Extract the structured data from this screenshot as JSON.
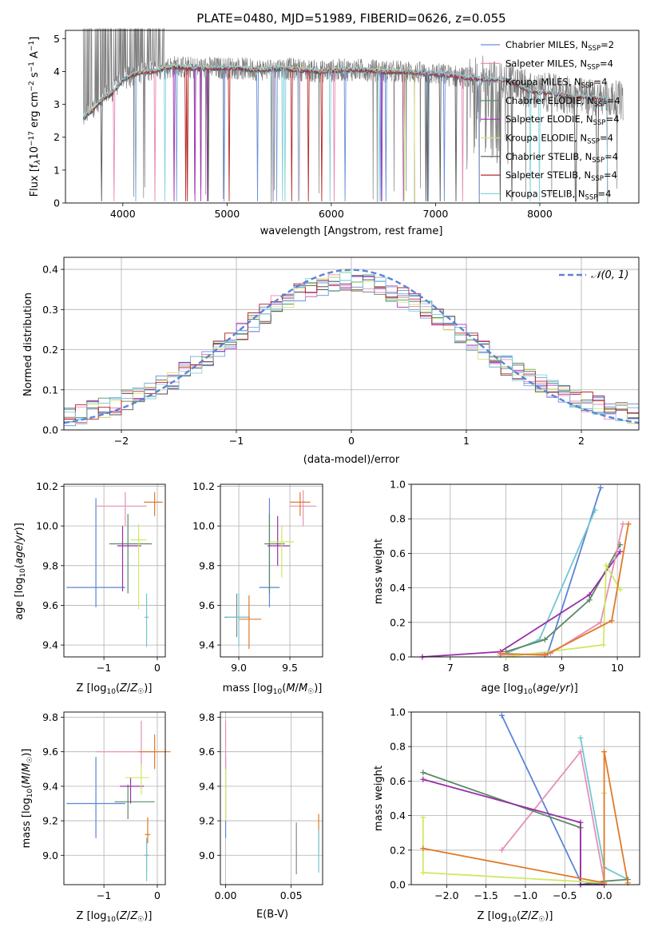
{
  "figure": {
    "title": "PLATE=0480, MJD=51989, FIBERID=0626, z=0.055"
  },
  "colors": {
    "data": "#808080",
    "grid": "#b0b0b0",
    "models": [
      "#6a8fd8",
      "#ea87b5",
      "#7ba7d4",
      "#55906a",
      "#a22fb5",
      "#d4e870",
      "#555555",
      "#b8282a",
      "#86d2dc"
    ],
    "summary": {
      "Chabrier MILES": "#5b84d6",
      "Salpeter MILES": "#e68fb8",
      "Salpeter STELIB": "#e07a28",
      "Chabrier ELODIE": "#5a8a63",
      "Salpeter ELODIE": "#9a2fa8",
      "Kroupa ELODIE": "#cdea63",
      "Kroupa MILES": "#6fa8dc",
      "Kroupa STELIB": "#72c7d1"
    }
  },
  "panel_spectrum": {
    "xlabel": "wavelength [Angstrom, rest frame]",
    "ylabel": "Flux [f_λ10^-17 erg cm^-2 s^-1 A^-1]",
    "xticks": [
      "4000",
      "5000",
      "6000",
      "7000",
      "8000"
    ],
    "yticks": [
      "0",
      "1",
      "2",
      "3",
      "4",
      "5"
    ],
    "legend": [
      {
        "label": "Chabrier MILES, N",
        "sub": "SSP",
        "suffix": "=2"
      },
      {
        "label": "Salpeter MILES, N",
        "sub": "SSP",
        "suffix": "=4"
      },
      {
        "label": "Kroupa MILES, N",
        "sub": "SSP",
        "suffix": "=4"
      },
      {
        "label": "Chabrier ELODIE, N",
        "sub": "SSP",
        "suffix": "=4"
      },
      {
        "label": "Salpeter ELODIE, N",
        "sub": "SSP",
        "suffix": "=4"
      },
      {
        "label": "Kroupa ELODIE, N",
        "sub": "SSP",
        "suffix": "=4"
      },
      {
        "label": "Chabrier STELIB, N",
        "sub": "SSP",
        "suffix": "=4"
      },
      {
        "label": "Salpeter STELIB, N",
        "sub": "SSP",
        "suffix": "=4"
      },
      {
        "label": "Kroupa STELIB, N",
        "sub": "SSP",
        "suffix": "=4"
      }
    ]
  },
  "panel_residuals": {
    "xlabel": "(data-model)/error",
    "ylabel": "Normed distribution",
    "xticks": [
      "−2",
      "−1",
      "0",
      "1",
      "2"
    ],
    "yticks": [
      "0.0",
      "0.1",
      "0.2",
      "0.3",
      "0.4"
    ],
    "legend": "𝒩(0, 1)"
  },
  "panel_age_Z": {
    "xlabel": "Z [log10(Z/Z☉)]",
    "ylabel": "age  [log10(age/yr)]"
  },
  "panel_age_mass": {
    "xlabel": "mass [log10(M/M☉)]"
  },
  "panel_weight_age": {
    "xlabel": "age  [log10(age/yr)]",
    "ylabel": "mass weight"
  },
  "panel_mass_Z": {
    "xlabel": "Z [log10(Z/Z☉)]",
    "ylabel": "mass [log10(M/M☉)]"
  },
  "panel_mass_ebv": {
    "xlabel": "E(B-V)"
  },
  "panel_weight_Z": {
    "xlabel": "Z [log10(Z/Z☉)]",
    "ylabel": "mass weight"
  },
  "chart_data": [
    {
      "type": "line",
      "title": "PLATE=0480, MJD=51989, FIBERID=0626, z=0.055",
      "xlabel": "wavelength [Angstrom, rest frame]",
      "ylabel": "Flux [f_λ 10^-17 erg cm^-2 s^-1 A^-1]",
      "xlim": [
        3450,
        8950
      ],
      "ylim": [
        0,
        5.25
      ],
      "grid": false,
      "legend_position": "top-right",
      "continuum": {
        "x": [
          3620,
          3700,
          3800,
          3900,
          4000,
          4100,
          4200,
          4300,
          4400,
          4500,
          4700,
          4900,
          5100,
          5300,
          5500,
          5700,
          5900,
          6100,
          6300,
          6500,
          6700,
          6900,
          7100,
          7300,
          7500,
          7700,
          7900,
          8100,
          8300,
          8500,
          8700,
          8800
        ],
        "y": [
          2.6,
          2.8,
          3.15,
          3.35,
          3.75,
          3.9,
          4.0,
          4.0,
          4.1,
          4.15,
          4.1,
          4.1,
          4.1,
          4.05,
          4.1,
          4.05,
          4.0,
          4.05,
          4.05,
          4.0,
          4.0,
          3.95,
          3.9,
          3.8,
          3.75,
          3.75,
          3.4,
          3.35,
          3.25,
          3.2,
          3.15,
          3.1
        ]
      },
      "series": [
        {
          "name": "Chabrier MILES, N_SSP=2",
          "xmax": 7420
        },
        {
          "name": "Salpeter MILES, N_SSP=4",
          "xmax": 7420
        },
        {
          "name": "Kroupa MILES, N_SSP=4",
          "xmax": 7420
        },
        {
          "name": "Chabrier ELODIE, N_SSP=4",
          "xmax": 6800
        },
        {
          "name": "Salpeter ELODIE, N_SSP=4",
          "xmax": 6800
        },
        {
          "name": "Kroupa ELODIE, N_SSP=4",
          "xmax": 6800
        },
        {
          "name": "Chabrier STELIB, N_SSP=4",
          "xmax": 8650
        },
        {
          "name": "Salpeter STELIB, N_SSP=4",
          "xmax": 8650
        },
        {
          "name": "Kroupa STELIB, N_SSP=4",
          "xmax": 8650
        }
      ]
    },
    {
      "type": "bar",
      "xlabel": "(data-model)/error",
      "ylabel": "Normed distribution",
      "xlim": [
        -2.5,
        2.5
      ],
      "ylim": [
        0,
        0.43
      ],
      "grid": true,
      "bin_width": 0.1,
      "reference_curve": "N(0,1)",
      "bins_center": [
        -2.45,
        -2.35,
        -2.25,
        -2.15,
        -2.05,
        -1.95,
        -1.85,
        -1.75,
        -1.65,
        -1.55,
        -1.45,
        -1.35,
        -1.25,
        -1.15,
        -1.05,
        -0.95,
        -0.85,
        -0.75,
        -0.65,
        -0.55,
        -0.45,
        -0.35,
        -0.25,
        -0.15,
        -0.05,
        0.05,
        0.15,
        0.25,
        0.35,
        0.45,
        0.55,
        0.65,
        0.75,
        0.85,
        0.95,
        1.05,
        1.15,
        1.25,
        1.35,
        1.45,
        1.55,
        1.65,
        1.75,
        1.85,
        1.95,
        2.05,
        2.15,
        2.25,
        2.35,
        2.45
      ],
      "envelope": [
        0.035,
        0.038,
        0.05,
        0.055,
        0.06,
        0.075,
        0.085,
        0.095,
        0.11,
        0.125,
        0.15,
        0.165,
        0.18,
        0.2,
        0.225,
        0.245,
        0.27,
        0.29,
        0.31,
        0.33,
        0.345,
        0.355,
        0.36,
        0.365,
        0.37,
        0.37,
        0.365,
        0.355,
        0.34,
        0.33,
        0.315,
        0.3,
        0.28,
        0.26,
        0.24,
        0.22,
        0.2,
        0.18,
        0.16,
        0.145,
        0.13,
        0.115,
        0.1,
        0.09,
        0.08,
        0.07,
        0.06,
        0.05,
        0.045,
        0.04
      ],
      "series": [
        {
          "name": "Chabrier MILES, N_SSP=2"
        },
        {
          "name": "Salpeter MILES, N_SSP=4"
        },
        {
          "name": "Kroupa MILES, N_SSP=4"
        },
        {
          "name": "Chabrier ELODIE, N_SSP=4"
        },
        {
          "name": "Salpeter ELODIE, N_SSP=4"
        },
        {
          "name": "Kroupa ELODIE, N_SSP=4"
        },
        {
          "name": "Chabrier STELIB, N_SSP=4"
        },
        {
          "name": "Salpeter STELIB, N_SSP=4"
        },
        {
          "name": "Kroupa STELIB, N_SSP=4"
        }
      ]
    },
    {
      "type": "scatter",
      "xlabel": "Z [log10(Z/Z☉)]",
      "ylabel": "age  [log10(age/yr)]",
      "xlim": [
        -1.75,
        0.15
      ],
      "ylim": [
        9.34,
        10.21
      ],
      "xticks": [
        -1,
        0
      ],
      "yticks": [
        9.4,
        9.6,
        9.8,
        10.0,
        10.2
      ],
      "grid": true,
      "errorbars": [
        {
          "name": "Chabrier MILES",
          "x": -1.15,
          "xerr": [
            0.55,
            0.55
          ],
          "y": 9.69,
          "yerr": [
            0.1,
            0.45
          ]
        },
        {
          "name": "Salpeter MILES",
          "x": -0.6,
          "xerr": [
            0.55,
            0.4
          ],
          "y": 10.1,
          "yerr": [
            0.1,
            0.07
          ]
        },
        {
          "name": "Salpeter STELIB",
          "x": -0.05,
          "xerr": [
            0.2,
            0.15
          ],
          "y": 10.12,
          "yerr": [
            0.07,
            0.05
          ]
        },
        {
          "name": "Chabrier ELODIE",
          "x": -0.55,
          "xerr": [
            0.35,
            0.45
          ],
          "y": 9.91,
          "yerr": [
            0.25,
            0.15
          ]
        },
        {
          "name": "Salpeter ELODIE",
          "x": -0.65,
          "xerr": [
            0.1,
            0.35
          ],
          "y": 9.9,
          "yerr": [
            0.23,
            0.1
          ]
        },
        {
          "name": "Kroupa ELODIE",
          "x": -0.35,
          "xerr": [
            0.15,
            0.15
          ],
          "y": 9.93,
          "yerr": [
            0.35,
            0.08
          ]
        },
        {
          "name": "Kroupa STELIB",
          "x": -0.2,
          "xerr": [
            0.04,
            0.04
          ],
          "y": 9.54,
          "yerr": [
            0.15,
            0.12
          ]
        }
      ]
    },
    {
      "type": "scatter",
      "xlabel": "mass [log10(M/M☉)]",
      "xlim": [
        8.82,
        9.82
      ],
      "ylim": [
        9.34,
        10.21
      ],
      "xticks": [
        9.0,
        9.5
      ],
      "yticks": [
        9.4,
        9.6,
        9.8,
        10.0,
        10.2
      ],
      "grid": true,
      "errorbars": [
        {
          "name": "Chabrier MILES",
          "x": 9.3,
          "xerr": [
            0.1,
            0.1
          ],
          "y": 9.69,
          "yerr": [
            0.1,
            0.45
          ]
        },
        {
          "name": "Salpeter MILES",
          "x": 9.63,
          "xerr": [
            0.13,
            0.13
          ],
          "y": 10.1,
          "yerr": [
            0.1,
            0.08
          ]
        },
        {
          "name": "Salpeter STELIB",
          "x": 9.6,
          "xerr": [
            0.1,
            0.1
          ],
          "y": 10.12,
          "yerr": [
            0.07,
            0.05
          ]
        },
        {
          "name": "Chabrier ELODIE",
          "x": 9.3,
          "xerr": [
            0.05,
            0.15
          ],
          "y": 9.91,
          "yerr": [
            0.25,
            0.15
          ]
        },
        {
          "name": "Salpeter ELODIE",
          "x": 9.38,
          "xerr": [
            0.1,
            0.12
          ],
          "y": 9.9,
          "yerr": [
            0.1,
            0.15
          ]
        },
        {
          "name": "Kroupa ELODIE",
          "x": 9.42,
          "xerr": [
            0.12,
            0.12
          ],
          "y": 9.92,
          "yerr": [
            0.18,
            0.08
          ]
        },
        {
          "name": "Chabrier STELIB",
          "x": 8.98,
          "xerr": [
            0.12,
            0.13
          ],
          "y": 9.54,
          "yerr": [
            0.1,
            0.12
          ]
        },
        {
          "name": "Salpeter STELIB",
          "x": 9.1,
          "xerr": [
            0.1,
            0.12
          ],
          "y": 9.53,
          "yerr": [
            0.15,
            0.12
          ]
        },
        {
          "name": "Kroupa STELIB",
          "x": 9.0,
          "xerr": [
            0.12,
            0.1
          ],
          "y": 9.54,
          "yerr": [
            0.15,
            0.12
          ]
        }
      ]
    },
    {
      "type": "line",
      "xlabel": "age  [log10(age/yr)]",
      "ylabel": "mass weight",
      "xlim": [
        6.3,
        10.4
      ],
      "ylim": [
        0,
        1
      ],
      "xticks": [
        7,
        8,
        9,
        10
      ],
      "yticks": [
        0.0,
        0.2,
        0.4,
        0.6,
        0.8,
        1.0
      ],
      "grid": true,
      "series": [
        {
          "name": "Chabrier MILES",
          "x": [
            8.75,
            9.7
          ],
          "y": [
            0.02,
            0.98
          ]
        },
        {
          "name": "Kroupa STELIB",
          "x": [
            8.0,
            8.6,
            9.6
          ],
          "y": [
            0.02,
            0.1,
            0.85
          ]
        },
        {
          "name": "Chabrier ELODIE",
          "x": [
            8.0,
            8.7,
            9.5,
            10.05
          ],
          "y": [
            0.03,
            0.1,
            0.33,
            0.65
          ]
        },
        {
          "name": "Salpeter ELODIE",
          "x": [
            6.5,
            7.9,
            9.5,
            10.05
          ],
          "y": [
            0.0,
            0.03,
            0.36,
            0.61
          ]
        },
        {
          "name": "Salpeter MILES",
          "x": [
            7.9,
            8.8,
            9.7,
            10.1
          ],
          "y": [
            0.01,
            0.02,
            0.2,
            0.77
          ]
        },
        {
          "name": "Kroupa ELODIE",
          "x": [
            8.0,
            9.75,
            9.8,
            10.05
          ],
          "y": [
            0.0,
            0.07,
            0.53,
            0.39
          ]
        },
        {
          "name": "Salpeter STELIB",
          "x": [
            7.9,
            8.7,
            9.9,
            10.2
          ],
          "y": [
            0.02,
            0.01,
            0.21,
            0.77
          ]
        }
      ]
    },
    {
      "type": "scatter",
      "xlabel": "Z [log10(Z/Z☉)]",
      "ylabel": "mass [log10(M/M☉)]",
      "xlim": [
        -1.75,
        0.15
      ],
      "ylim": [
        8.83,
        9.83
      ],
      "xticks": [
        -1,
        0
      ],
      "yticks": [
        9.0,
        9.2,
        9.4,
        9.6,
        9.8
      ],
      "grid": true,
      "errorbars": [
        {
          "name": "Chabrier MILES",
          "x": -1.15,
          "xerr": [
            0.55,
            0.55
          ],
          "y": 9.3,
          "yerr": [
            0.2,
            0.27
          ]
        },
        {
          "name": "Salpeter MILES",
          "x": -0.3,
          "xerr": [
            0.85,
            0.3
          ],
          "y": 9.6,
          "yerr": [
            0.1,
            0.18
          ]
        },
        {
          "name": "Salpeter STELIB",
          "x": -0.05,
          "xerr": [
            0.3,
            0.3
          ],
          "y": 9.6,
          "yerr": [
            0.1,
            0.1
          ]
        },
        {
          "name": "Chabrier ELODIE",
          "x": -0.55,
          "xerr": [
            0.25,
            0.5
          ],
          "y": 9.31,
          "yerr": [
            0.1,
            0.1
          ]
        },
        {
          "name": "Salpeter ELODIE",
          "x": -0.5,
          "xerr": [
            0.2,
            0.25
          ],
          "y": 9.4,
          "yerr": [
            0.1,
            0.05
          ]
        },
        {
          "name": "Kroupa ELODIE",
          "x": -0.3,
          "xerr": [
            0.3,
            0.15
          ],
          "y": 9.45,
          "yerr": [
            0.1,
            0.08
          ]
        },
        {
          "name": "Chabrier STELIB",
          "x": -0.2,
          "xerr": [
            0.04,
            0.04
          ],
          "y": 9.0,
          "yerr": [
            0.1,
            0.1
          ]
        },
        {
          "name": "Salpeter STELIB",
          "x": -0.18,
          "xerr": [
            0.05,
            0.05
          ],
          "y": 9.12,
          "yerr": [
            0.05,
            0.1
          ]
        },
        {
          "name": "Kroupa STELIB",
          "x": -0.2,
          "xerr": [
            0.04,
            0.04
          ],
          "y": 9.0,
          "yerr": [
            0.15,
            0.1
          ]
        }
      ]
    },
    {
      "type": "scatter",
      "xlabel": "E(B-V)",
      "xlim": [
        -0.004,
        0.074
      ],
      "ylim": [
        8.83,
        9.83
      ],
      "xticks": [
        0.0,
        0.05
      ],
      "yticks": [
        9.0,
        9.2,
        9.4,
        9.6,
        9.8
      ],
      "grid": true,
      "errorbars": [
        {
          "name": "Chabrier MILES",
          "x": 0.0,
          "y": 9.3,
          "yerr": [
            0.2,
            0.27
          ]
        },
        {
          "name": "Salpeter MILES",
          "x": 0.0,
          "y": 9.6,
          "yerr": [
            0.1,
            0.18
          ]
        },
        {
          "name": "Kroupa ELODIE",
          "x": 0.0,
          "y": 9.4,
          "yerr": [
            0.2,
            0.1
          ]
        },
        {
          "name": "Chabrier STELIB",
          "x": 0.054,
          "y": 9.02,
          "yerr": [
            0.13,
            0.17
          ]
        },
        {
          "name": "Salpeter STELIB",
          "x": 0.071,
          "y": 9.12,
          "yerr": [
            0.1,
            0.12
          ]
        },
        {
          "name": "Kroupa STELIB",
          "x": 0.071,
          "y": 9.05,
          "yerr": [
            0.15,
            0.1
          ]
        }
      ]
    },
    {
      "type": "line",
      "xlabel": "Z [log10(Z/Z☉)]",
      "ylabel": "mass weight",
      "xlim": [
        -2.45,
        0.45
      ],
      "ylim": [
        0,
        1
      ],
      "xticks": [
        -2.0,
        -1.5,
        -1.0,
        -0.5,
        0.0
      ],
      "yticks": [
        0.0,
        0.2,
        0.4,
        0.6,
        0.8,
        1.0
      ],
      "grid": true,
      "series": [
        {
          "name": "Chabrier MILES",
          "x": [
            -1.3,
            -0.3,
            0.0
          ],
          "y": [
            0.98,
            0.02,
            0.0
          ]
        },
        {
          "name": "Salpeter MILES",
          "x": [
            -1.3,
            -0.3,
            0.0
          ],
          "y": [
            0.2,
            0.77,
            0.02
          ]
        },
        {
          "name": "Kroupa STELIB",
          "x": [
            -0.3,
            0.0,
            0.3
          ],
          "y": [
            0.85,
            0.1,
            0.03
          ]
        },
        {
          "name": "Chabrier ELODIE",
          "x": [
            -2.3,
            -0.3,
            -0.3,
            0.0,
            0.3
          ],
          "y": [
            0.65,
            0.33,
            0.0,
            0.02,
            0.03
          ]
        },
        {
          "name": "Salpeter ELODIE",
          "x": [
            -2.3,
            -0.3,
            -0.3,
            0.0
          ],
          "y": [
            0.61,
            0.36,
            0.0,
            0.0
          ]
        },
        {
          "name": "Kroupa ELODIE",
          "x": [
            -2.3,
            -2.3,
            0.0,
            0.0
          ],
          "y": [
            0.39,
            0.07,
            0.01,
            0.53
          ]
        },
        {
          "name": "Salpeter STELIB",
          "x": [
            -2.3,
            0.0,
            0.0,
            0.3
          ],
          "y": [
            0.21,
            0.01,
            0.77,
            0.01
          ]
        }
      ]
    }
  ]
}
